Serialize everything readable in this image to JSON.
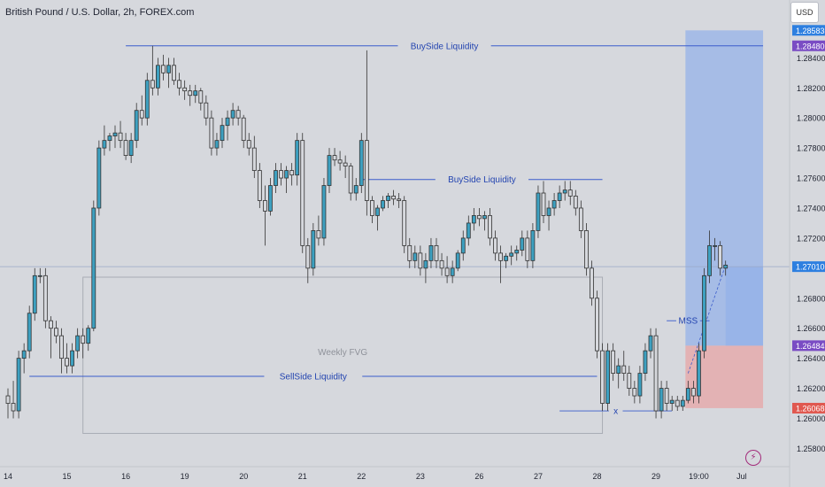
{
  "header": {
    "title": "British Pound / U.S. Dollar, 2h, FOREX.com",
    "currency_button": "USD"
  },
  "colors": {
    "background": "#d6d8dd",
    "bull_fill": "#3da0c0",
    "bear_fill": "#d6d8dd",
    "candle_edge": "#333333",
    "level_line": "#3a5ccc",
    "target_zone": "#7fa6ec",
    "stop_zone": "#e7a6a6",
    "price_tag_blue": "#2d7fe0",
    "price_tag_purple": "#7a4cc4",
    "price_tag_red": "#e0584f"
  },
  "icons": {
    "alert": "lightning-bolt-icon"
  },
  "chart_data": {
    "type": "candlestick",
    "symbol": "GBPUSD",
    "interval": "2h",
    "ylim": [
      1.2572,
      1.2862
    ],
    "y_ticks": [
      1.258,
      1.26,
      1.262,
      1.264,
      1.266,
      1.268,
      1.27,
      1.272,
      1.274,
      1.276,
      1.278,
      1.28,
      1.282,
      1.284
    ],
    "x_tick_labels": [
      {
        "label": "14",
        "bar": 0
      },
      {
        "label": "15",
        "bar": 11
      },
      {
        "label": "16",
        "bar": 22
      },
      {
        "label": "19",
        "bar": 33
      },
      {
        "label": "20",
        "bar": 44
      },
      {
        "label": "21",
        "bar": 55
      },
      {
        "label": "22",
        "bar": 66
      },
      {
        "label": "23",
        "bar": 77
      },
      {
        "label": "26",
        "bar": 88
      },
      {
        "label": "27",
        "bar": 99
      },
      {
        "label": "28",
        "bar": 110
      },
      {
        "label": "29",
        "bar": 121
      },
      {
        "label": "19:00",
        "bar": 129
      },
      {
        "label": "Jul",
        "bar": 137
      }
    ],
    "candles": [
      {
        "o": 1.2615,
        "h": 1.262,
        "l": 1.26,
        "c": 1.261
      },
      {
        "o": 1.261,
        "h": 1.2625,
        "l": 1.26,
        "c": 1.2605
      },
      {
        "o": 1.2605,
        "h": 1.2645,
        "l": 1.26,
        "c": 1.264
      },
      {
        "o": 1.264,
        "h": 1.265,
        "l": 1.263,
        "c": 1.2645
      },
      {
        "o": 1.2645,
        "h": 1.2675,
        "l": 1.264,
        "c": 1.267
      },
      {
        "o": 1.267,
        "h": 1.27,
        "l": 1.2665,
        "c": 1.2695
      },
      {
        "o": 1.2695,
        "h": 1.27,
        "l": 1.269,
        "c": 1.2695
      },
      {
        "o": 1.2695,
        "h": 1.27,
        "l": 1.266,
        "c": 1.2665
      },
      {
        "o": 1.2665,
        "h": 1.2668,
        "l": 1.264,
        "c": 1.266
      },
      {
        "o": 1.266,
        "h": 1.2665,
        "l": 1.265,
        "c": 1.2655
      },
      {
        "o": 1.2655,
        "h": 1.266,
        "l": 1.263,
        "c": 1.264
      },
      {
        "o": 1.264,
        "h": 1.265,
        "l": 1.263,
        "c": 1.2635
      },
      {
        "o": 1.2635,
        "h": 1.265,
        "l": 1.263,
        "c": 1.2645
      },
      {
        "o": 1.2645,
        "h": 1.266,
        "l": 1.264,
        "c": 1.2655
      },
      {
        "o": 1.2655,
        "h": 1.266,
        "l": 1.264,
        "c": 1.265
      },
      {
        "o": 1.265,
        "h": 1.2662,
        "l": 1.2645,
        "c": 1.266
      },
      {
        "o": 1.266,
        "h": 1.2745,
        "l": 1.2658,
        "c": 1.274
      },
      {
        "o": 1.274,
        "h": 1.2785,
        "l": 1.2735,
        "c": 1.278
      },
      {
        "o": 1.278,
        "h": 1.2795,
        "l": 1.2775,
        "c": 1.2785
      },
      {
        "o": 1.2785,
        "h": 1.279,
        "l": 1.2778,
        "c": 1.2788
      },
      {
        "o": 1.2788,
        "h": 1.2795,
        "l": 1.278,
        "c": 1.279
      },
      {
        "o": 1.279,
        "h": 1.2798,
        "l": 1.278,
        "c": 1.2785
      },
      {
        "o": 1.2785,
        "h": 1.279,
        "l": 1.2772,
        "c": 1.2775
      },
      {
        "o": 1.2775,
        "h": 1.279,
        "l": 1.277,
        "c": 1.2785
      },
      {
        "o": 1.2785,
        "h": 1.281,
        "l": 1.278,
        "c": 1.2805
      },
      {
        "o": 1.2805,
        "h": 1.2815,
        "l": 1.2795,
        "c": 1.28
      },
      {
        "o": 1.28,
        "h": 1.283,
        "l": 1.2795,
        "c": 1.2825
      },
      {
        "o": 1.2825,
        "h": 1.2848,
        "l": 1.2815,
        "c": 1.282
      },
      {
        "o": 1.282,
        "h": 1.284,
        "l": 1.2815,
        "c": 1.2835
      },
      {
        "o": 1.2835,
        "h": 1.2842,
        "l": 1.2825,
        "c": 1.283
      },
      {
        "o": 1.283,
        "h": 1.284,
        "l": 1.282,
        "c": 1.2835
      },
      {
        "o": 1.2835,
        "h": 1.284,
        "l": 1.2822,
        "c": 1.2825
      },
      {
        "o": 1.2825,
        "h": 1.283,
        "l": 1.2815,
        "c": 1.282
      },
      {
        "o": 1.282,
        "h": 1.2825,
        "l": 1.2812,
        "c": 1.2818
      },
      {
        "o": 1.2818,
        "h": 1.2822,
        "l": 1.2808,
        "c": 1.2815
      },
      {
        "o": 1.2815,
        "h": 1.2822,
        "l": 1.281,
        "c": 1.2818
      },
      {
        "o": 1.2818,
        "h": 1.282,
        "l": 1.2805,
        "c": 1.281
      },
      {
        "o": 1.281,
        "h": 1.2815,
        "l": 1.2795,
        "c": 1.28
      },
      {
        "o": 1.28,
        "h": 1.2805,
        "l": 1.2775,
        "c": 1.278
      },
      {
        "o": 1.278,
        "h": 1.279,
        "l": 1.2775,
        "c": 1.2785
      },
      {
        "o": 1.2785,
        "h": 1.28,
        "l": 1.278,
        "c": 1.2795
      },
      {
        "o": 1.2795,
        "h": 1.2805,
        "l": 1.2785,
        "c": 1.28
      },
      {
        "o": 1.28,
        "h": 1.281,
        "l": 1.2795,
        "c": 1.2805
      },
      {
        "o": 1.2805,
        "h": 1.2808,
        "l": 1.2795,
        "c": 1.28
      },
      {
        "o": 1.28,
        "h": 1.2802,
        "l": 1.278,
        "c": 1.2785
      },
      {
        "o": 1.2785,
        "h": 1.279,
        "l": 1.2775,
        "c": 1.278
      },
      {
        "o": 1.278,
        "h": 1.2788,
        "l": 1.276,
        "c": 1.2765
      },
      {
        "o": 1.2765,
        "h": 1.277,
        "l": 1.274,
        "c": 1.2745
      },
      {
        "o": 1.2745,
        "h": 1.2755,
        "l": 1.2715,
        "c": 1.2738
      },
      {
        "o": 1.2738,
        "h": 1.276,
        "l": 1.2735,
        "c": 1.2755
      },
      {
        "o": 1.2755,
        "h": 1.277,
        "l": 1.275,
        "c": 1.2765
      },
      {
        "o": 1.2765,
        "h": 1.277,
        "l": 1.2755,
        "c": 1.276
      },
      {
        "o": 1.276,
        "h": 1.2768,
        "l": 1.275,
        "c": 1.2765
      },
      {
        "o": 1.2765,
        "h": 1.277,
        "l": 1.2755,
        "c": 1.2762
      },
      {
        "o": 1.2762,
        "h": 1.279,
        "l": 1.2755,
        "c": 1.2785
      },
      {
        "o": 1.2785,
        "h": 1.279,
        "l": 1.271,
        "c": 1.2715
      },
      {
        "o": 1.2715,
        "h": 1.272,
        "l": 1.269,
        "c": 1.27
      },
      {
        "o": 1.27,
        "h": 1.273,
        "l": 1.2695,
        "c": 1.2725
      },
      {
        "o": 1.2725,
        "h": 1.2735,
        "l": 1.2715,
        "c": 1.272
      },
      {
        "o": 1.272,
        "h": 1.276,
        "l": 1.2715,
        "c": 1.2755
      },
      {
        "o": 1.2755,
        "h": 1.278,
        "l": 1.275,
        "c": 1.2775
      },
      {
        "o": 1.2775,
        "h": 1.278,
        "l": 1.2768,
        "c": 1.2772
      },
      {
        "o": 1.2772,
        "h": 1.2778,
        "l": 1.2765,
        "c": 1.277
      },
      {
        "o": 1.277,
        "h": 1.2775,
        "l": 1.276,
        "c": 1.2768
      },
      {
        "o": 1.2768,
        "h": 1.277,
        "l": 1.2745,
        "c": 1.275
      },
      {
        "o": 1.275,
        "h": 1.276,
        "l": 1.2745,
        "c": 1.2755
      },
      {
        "o": 1.2755,
        "h": 1.279,
        "l": 1.275,
        "c": 1.2785
      },
      {
        "o": 1.2785,
        "h": 1.2845,
        "l": 1.2735,
        "c": 1.2745
      },
      {
        "o": 1.2745,
        "h": 1.2748,
        "l": 1.273,
        "c": 1.2735
      },
      {
        "o": 1.2735,
        "h": 1.2742,
        "l": 1.2725,
        "c": 1.274
      },
      {
        "o": 1.274,
        "h": 1.2748,
        "l": 1.2738,
        "c": 1.2745
      },
      {
        "o": 1.2745,
        "h": 1.275,
        "l": 1.274,
        "c": 1.2748
      },
      {
        "o": 1.2748,
        "h": 1.2752,
        "l": 1.2742,
        "c": 1.2746
      },
      {
        "o": 1.2746,
        "h": 1.275,
        "l": 1.274,
        "c": 1.2745
      },
      {
        "o": 1.2745,
        "h": 1.2748,
        "l": 1.271,
        "c": 1.2715
      },
      {
        "o": 1.2715,
        "h": 1.272,
        "l": 1.27,
        "c": 1.2705
      },
      {
        "o": 1.2705,
        "h": 1.2715,
        "l": 1.27,
        "c": 1.271
      },
      {
        "o": 1.271,
        "h": 1.2715,
        "l": 1.2695,
        "c": 1.27
      },
      {
        "o": 1.27,
        "h": 1.271,
        "l": 1.269,
        "c": 1.2705
      },
      {
        "o": 1.2705,
        "h": 1.272,
        "l": 1.27,
        "c": 1.2715
      },
      {
        "o": 1.2715,
        "h": 1.272,
        "l": 1.27,
        "c": 1.2705
      },
      {
        "o": 1.2705,
        "h": 1.271,
        "l": 1.2695,
        "c": 1.27
      },
      {
        "o": 1.27,
        "h": 1.2708,
        "l": 1.269,
        "c": 1.2695
      },
      {
        "o": 1.2695,
        "h": 1.2705,
        "l": 1.269,
        "c": 1.27
      },
      {
        "o": 1.27,
        "h": 1.2712,
        "l": 1.2698,
        "c": 1.271
      },
      {
        "o": 1.271,
        "h": 1.2725,
        "l": 1.2705,
        "c": 1.272
      },
      {
        "o": 1.272,
        "h": 1.2735,
        "l": 1.2715,
        "c": 1.273
      },
      {
        "o": 1.273,
        "h": 1.274,
        "l": 1.2725,
        "c": 1.2735
      },
      {
        "o": 1.2735,
        "h": 1.274,
        "l": 1.2728,
        "c": 1.2733
      },
      {
        "o": 1.2733,
        "h": 1.2738,
        "l": 1.2725,
        "c": 1.2735
      },
      {
        "o": 1.2735,
        "h": 1.274,
        "l": 1.2715,
        "c": 1.272
      },
      {
        "o": 1.272,
        "h": 1.2725,
        "l": 1.2705,
        "c": 1.271
      },
      {
        "o": 1.271,
        "h": 1.2715,
        "l": 1.269,
        "c": 1.2705
      },
      {
        "o": 1.2705,
        "h": 1.271,
        "l": 1.27,
        "c": 1.2708
      },
      {
        "o": 1.2708,
        "h": 1.2715,
        "l": 1.2702,
        "c": 1.271
      },
      {
        "o": 1.271,
        "h": 1.2715,
        "l": 1.2705,
        "c": 1.2712
      },
      {
        "o": 1.2712,
        "h": 1.2725,
        "l": 1.2708,
        "c": 1.272
      },
      {
        "o": 1.272,
        "h": 1.2725,
        "l": 1.27,
        "c": 1.2705
      },
      {
        "o": 1.2705,
        "h": 1.273,
        "l": 1.27,
        "c": 1.2725
      },
      {
        "o": 1.2725,
        "h": 1.2755,
        "l": 1.272,
        "c": 1.275
      },
      {
        "o": 1.275,
        "h": 1.2758,
        "l": 1.273,
        "c": 1.2735
      },
      {
        "o": 1.2735,
        "h": 1.2745,
        "l": 1.2725,
        "c": 1.274
      },
      {
        "o": 1.274,
        "h": 1.275,
        "l": 1.2735,
        "c": 1.2745
      },
      {
        "o": 1.2745,
        "h": 1.2755,
        "l": 1.274,
        "c": 1.275
      },
      {
        "o": 1.275,
        "h": 1.2758,
        "l": 1.2745,
        "c": 1.2752
      },
      {
        "o": 1.2752,
        "h": 1.2758,
        "l": 1.2742,
        "c": 1.2748
      },
      {
        "o": 1.2748,
        "h": 1.2752,
        "l": 1.2735,
        "c": 1.274
      },
      {
        "o": 1.274,
        "h": 1.2745,
        "l": 1.272,
        "c": 1.2725
      },
      {
        "o": 1.2725,
        "h": 1.273,
        "l": 1.2695,
        "c": 1.27
      },
      {
        "o": 1.27,
        "h": 1.2705,
        "l": 1.2675,
        "c": 1.268
      },
      {
        "o": 1.268,
        "h": 1.2685,
        "l": 1.264,
        "c": 1.2645
      },
      {
        "o": 1.2645,
        "h": 1.265,
        "l": 1.2605,
        "c": 1.261
      },
      {
        "o": 1.261,
        "h": 1.265,
        "l": 1.2605,
        "c": 1.2645
      },
      {
        "o": 1.2645,
        "h": 1.265,
        "l": 1.2625,
        "c": 1.263
      },
      {
        "o": 1.263,
        "h": 1.264,
        "l": 1.262,
        "c": 1.2635
      },
      {
        "o": 1.2635,
        "h": 1.2645,
        "l": 1.2625,
        "c": 1.263
      },
      {
        "o": 1.263,
        "h": 1.2635,
        "l": 1.2615,
        "c": 1.262
      },
      {
        "o": 1.262,
        "h": 1.2625,
        "l": 1.261,
        "c": 1.2615
      },
      {
        "o": 1.2615,
        "h": 1.2635,
        "l": 1.261,
        "c": 1.263
      },
      {
        "o": 1.263,
        "h": 1.265,
        "l": 1.2625,
        "c": 1.2645
      },
      {
        "o": 1.2645,
        "h": 1.266,
        "l": 1.264,
        "c": 1.2655
      },
      {
        "o": 1.2655,
        "h": 1.266,
        "l": 1.26,
        "c": 1.2605
      },
      {
        "o": 1.2605,
        "h": 1.2625,
        "l": 1.26,
        "c": 1.262
      },
      {
        "o": 1.262,
        "h": 1.2625,
        "l": 1.2605,
        "c": 1.261
      },
      {
        "o": 1.261,
        "h": 1.2615,
        "l": 1.2605,
        "c": 1.2612
      },
      {
        "o": 1.2612,
        "h": 1.2615,
        "l": 1.2605,
        "c": 1.2608
      },
      {
        "o": 1.2608,
        "h": 1.2615,
        "l": 1.2605,
        "c": 1.2612
      },
      {
        "o": 1.2612,
        "h": 1.2625,
        "l": 1.261,
        "c": 1.262
      },
      {
        "o": 1.262,
        "h": 1.2625,
        "l": 1.261,
        "c": 1.2615
      },
      {
        "o": 1.2615,
        "h": 1.265,
        "l": 1.261,
        "c": 1.2645
      },
      {
        "o": 1.2645,
        "h": 1.27,
        "l": 1.264,
        "c": 1.2695
      },
      {
        "o": 1.2695,
        "h": 1.2725,
        "l": 1.269,
        "c": 1.2715
      },
      {
        "o": 1.2715,
        "h": 1.272,
        "l": 1.2705,
        "c": 1.2715
      },
      {
        "o": 1.2715,
        "h": 1.2718,
        "l": 1.2695,
        "c": 1.27
      },
      {
        "o": 1.27,
        "h": 1.2705,
        "l": 1.2695,
        "c": 1.2702
      }
    ],
    "annotations": {
      "buyside_top": {
        "label": "BuySide Liquidity",
        "price": 1.2848,
        "from_bar": 22,
        "to_bar": 141
      },
      "buyside_mid": {
        "label": "BuySide Liquidity",
        "price": 1.2759,
        "from_bar": 66,
        "to_bar": 111
      },
      "sellside": {
        "label": "SellSide Liquidity",
        "price": 1.2628,
        "from_bar": 4,
        "to_bar": 110
      },
      "x_marker": {
        "label": "x",
        "price": 1.2605,
        "from_bar": 103,
        "to_bar": 124
      },
      "mss": {
        "label": "MSS",
        "price": 1.2665,
        "from_bar": 123,
        "to_bar": 131
      },
      "fvg_box": {
        "label": "Weekly FVG",
        "top": 1.2694,
        "bottom": 1.259,
        "from_bar": 14,
        "to_bar": 111
      },
      "position": {
        "entry": 1.26484,
        "target": 1.28583,
        "stop": 1.26068,
        "from_bar": 127,
        "to_bar": 141
      }
    },
    "price_tags": [
      {
        "label": "1.28583",
        "price": 1.28583,
        "color": "#2d7fe0"
      },
      {
        "label": "1.28480",
        "price": 1.2848,
        "color": "#7a4cc4"
      },
      {
        "label": "1.27010",
        "price": 1.2701,
        "color": "#2d7fe0"
      },
      {
        "label": "1.26484",
        "price": 1.26484,
        "color": "#7a4cc4"
      },
      {
        "label": "1.26068",
        "price": 1.26068,
        "color": "#e0584f"
      }
    ],
    "current_price": 1.2701
  }
}
